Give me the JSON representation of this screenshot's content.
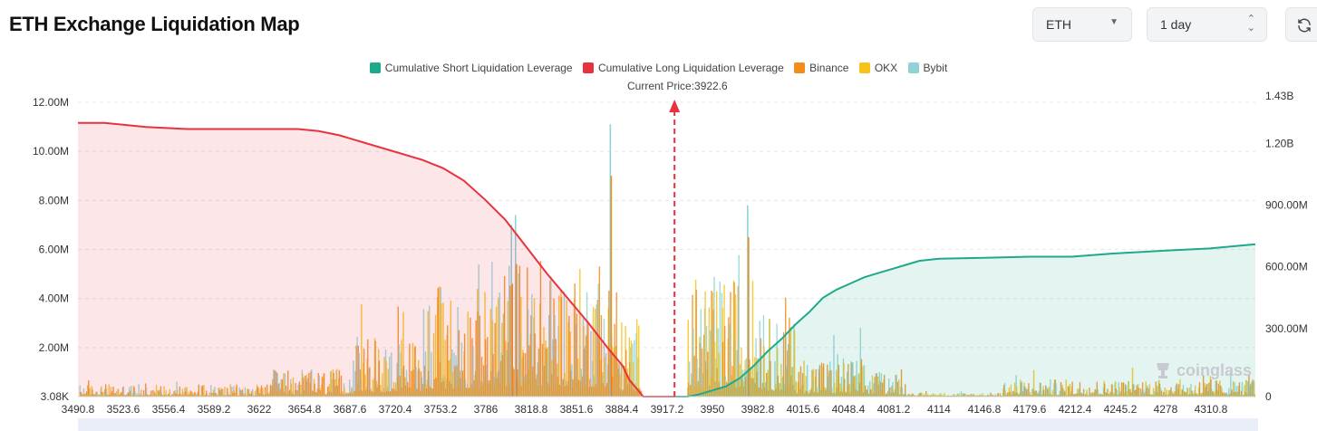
{
  "header": {
    "title": "ETH Exchange Liquidation Map",
    "coin_select": "ETH",
    "range_select": "1 day"
  },
  "legend": [
    {
      "label": "Cumulative Short Liquidation Leverage",
      "color": "#1fa98c"
    },
    {
      "label": "Cumulative Long Liquidation Leverage",
      "color": "#e8333f"
    },
    {
      "label": "Binance",
      "color": "#f28c1a"
    },
    {
      "label": "OKX",
      "color": "#f7c21a"
    },
    {
      "label": "Bybit",
      "color": "#8fd3d6"
    }
  ],
  "current_price_label": "Current Price:3922.6",
  "watermark": "coinglass",
  "chart_data": {
    "type": "bar+area",
    "current_price": 3922.6,
    "x_range": [
      3490.8,
      4343.0
    ],
    "x_ticks": [
      "3490.8",
      "3523.6",
      "3556.4",
      "3589.2",
      "3622",
      "3654.8",
      "3687.6",
      "3720.4",
      "3753.2",
      "3786",
      "3818.8",
      "3851.6",
      "3884.4",
      "3917.2",
      "3950",
      "3982.8",
      "4015.6",
      "4048.4",
      "4081.2",
      "4114",
      "4146.8",
      "4179.6",
      "4212.4",
      "4245.2",
      "4278",
      "4310.8"
    ],
    "y_left": {
      "ticks": [
        "3.08K",
        "2.00M",
        "4.00M",
        "6.00M",
        "8.00M",
        "10.00M",
        "12.00M"
      ],
      "min": 3080,
      "max": 12000000
    },
    "y_right": {
      "ticks": [
        "0",
        "300.00M",
        "600.00M",
        "900.00M",
        "1.20B",
        "1.43B"
      ],
      "max": 1430000000
    },
    "long_cumulative": {
      "x": [
        3490.8,
        3510,
        3540,
        3570,
        3600,
        3630,
        3650,
        3665,
        3680,
        3700,
        3720,
        3740,
        3755,
        3770,
        3785,
        3800,
        3815,
        3830,
        3845,
        3860,
        3875,
        3885,
        3890,
        3895,
        3900,
        3922.6
      ],
      "y": [
        1.33,
        1.33,
        1.31,
        1.3,
        1.3,
        1.3,
        1.3,
        1.29,
        1.27,
        1.23,
        1.19,
        1.15,
        1.11,
        1.05,
        0.96,
        0.86,
        0.73,
        0.6,
        0.48,
        0.36,
        0.23,
        0.15,
        0.08,
        0.04,
        0.0,
        0.0
      ]
    },
    "short_cumulative": {
      "x": [
        3922.6,
        3932,
        3940,
        3950,
        3960,
        3970,
        3980,
        3990,
        4000,
        4010,
        4020,
        4030,
        4040,
        4050,
        4060,
        4070,
        4080,
        4090,
        4100,
        4114,
        4150,
        4180,
        4210,
        4240,
        4280,
        4310,
        4343
      ],
      "y": [
        0.0,
        0.0,
        0.01,
        0.03,
        0.05,
        0.09,
        0.15,
        0.22,
        0.28,
        0.35,
        0.41,
        0.48,
        0.52,
        0.55,
        0.58,
        0.6,
        0.62,
        0.64,
        0.66,
        0.67,
        0.675,
        0.68,
        0.68,
        0.695,
        0.71,
        0.72,
        0.74
      ]
    },
    "peaks": [
      {
        "x": 3875.6,
        "binance": 9.0,
        "bybit": 11.1
      },
      {
        "x": 3807.0,
        "binance": 5.4,
        "bybit": 7.4
      },
      {
        "x": 3975.0,
        "binance": 6.5,
        "bybit": 7.8
      },
      {
        "x": 3804.0,
        "binance": 4.6,
        "bybit": 7.0
      }
    ],
    "units": {
      "left": "USD (per price level)",
      "right": "USD (cumulative, billions)"
    }
  }
}
